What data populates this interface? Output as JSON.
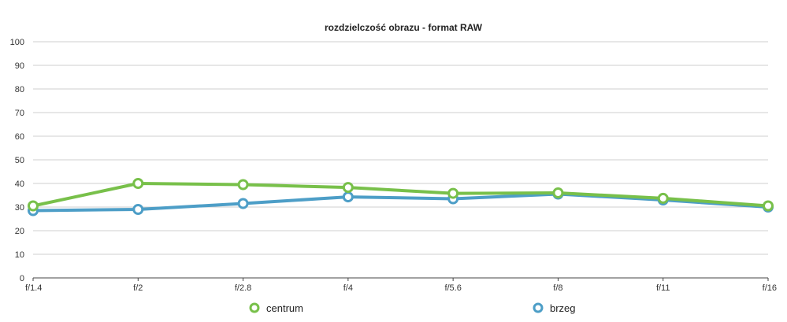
{
  "chart_data": {
    "type": "line",
    "title": "rozdzielczość obrazu - format RAW",
    "xlabel": "",
    "ylabel": "",
    "categories": [
      "f/1.4",
      "f/2",
      "f/2.8",
      "f/4",
      "f/5.6",
      "f/8",
      "f/11",
      "f/16"
    ],
    "y_ticks": [
      0,
      10,
      20,
      30,
      40,
      50,
      60,
      70,
      80,
      90,
      100
    ],
    "ylim": [
      0,
      100
    ],
    "grid": true,
    "legend_position": "bottom",
    "series": [
      {
        "name": "centrum",
        "color": "#78c04a",
        "values": [
          30.5,
          40,
          39.5,
          38.3,
          35.8,
          36,
          33.7,
          30.5
        ]
      },
      {
        "name": "brzeg",
        "color": "#4d9ec7",
        "values": [
          28.5,
          29,
          31.5,
          34.3,
          33.5,
          35.5,
          33,
          30
        ]
      }
    ]
  }
}
